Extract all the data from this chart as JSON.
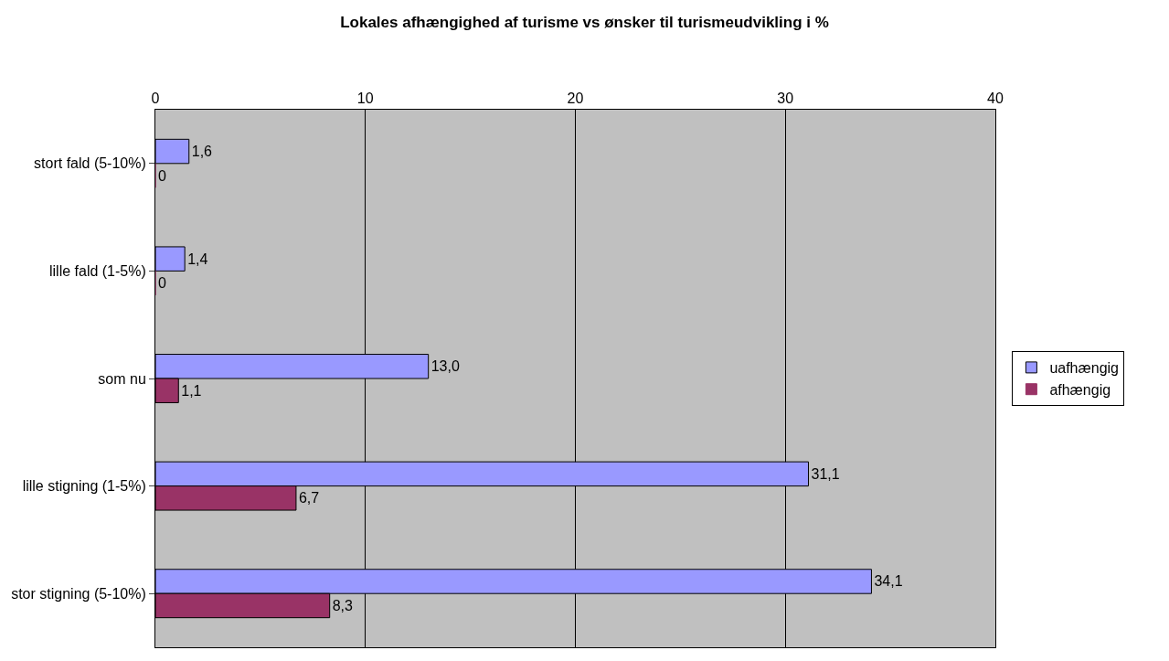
{
  "chart_data": {
    "type": "bar",
    "orientation": "horizontal",
    "title": "Lokales afhængighed af turisme vs ønsker til turismeudvikling i %",
    "categories": [
      "stort fald (5-10%)",
      "lille fald (1-5%)",
      "som nu",
      "lille stigning (1-5%)",
      "stor stigning (5-10%)"
    ],
    "series": [
      {
        "name": "uafhængig",
        "color": "#9999ff",
        "values": [
          1.6,
          1.4,
          13.0,
          31.1,
          34.1
        ],
        "value_labels": [
          "1,6",
          "1,4",
          "13,0",
          "31,1",
          "34,1"
        ]
      },
      {
        "name": "afhængig",
        "color": "#993366",
        "values": [
          0,
          0,
          1.1,
          6.7,
          8.3
        ],
        "value_labels": [
          "0",
          "0",
          "1,1",
          "6,7",
          "8,3"
        ]
      }
    ],
    "xlim": [
      0,
      40
    ],
    "xticks": [
      0,
      10,
      20,
      30,
      40
    ],
    "grid": "x",
    "legend": "right"
  }
}
